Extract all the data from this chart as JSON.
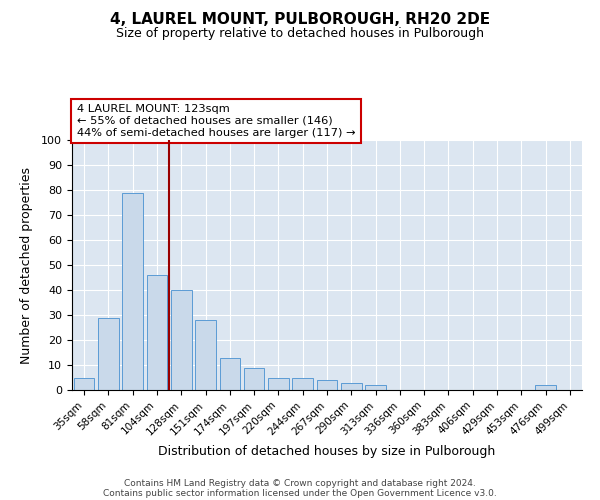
{
  "title": "4, LAUREL MOUNT, PULBOROUGH, RH20 2DE",
  "subtitle": "Size of property relative to detached houses in Pulborough",
  "xlabel": "Distribution of detached houses by size in Pulborough",
  "ylabel": "Number of detached properties",
  "categories": [
    "35sqm",
    "58sqm",
    "81sqm",
    "104sqm",
    "128sqm",
    "151sqm",
    "174sqm",
    "197sqm",
    "220sqm",
    "244sqm",
    "267sqm",
    "290sqm",
    "313sqm",
    "336sqm",
    "360sqm",
    "383sqm",
    "406sqm",
    "429sqm",
    "453sqm",
    "476sqm",
    "499sqm"
  ],
  "values": [
    5,
    29,
    79,
    46,
    40,
    28,
    13,
    9,
    5,
    5,
    4,
    3,
    2,
    0,
    0,
    0,
    0,
    0,
    0,
    2,
    0
  ],
  "bar_color": "#c9d9ea",
  "bar_edge_color": "#5b9bd5",
  "background_color": "#dce6f1",
  "vline_x": 3.5,
  "vline_color": "#990000",
  "annotation_line1": "4 LAUREL MOUNT: 123sqm",
  "annotation_line2": "← 55% of detached houses are smaller (146)",
  "annotation_line3": "44% of semi-detached houses are larger (117) →",
  "annotation_box_color": "#ffffff",
  "annotation_box_edge_color": "#cc0000",
  "ylim": [
    0,
    100
  ],
  "yticks": [
    0,
    10,
    20,
    30,
    40,
    50,
    60,
    70,
    80,
    90,
    100
  ],
  "footer_line1": "Contains HM Land Registry data © Crown copyright and database right 2024.",
  "footer_line2": "Contains public sector information licensed under the Open Government Licence v3.0."
}
